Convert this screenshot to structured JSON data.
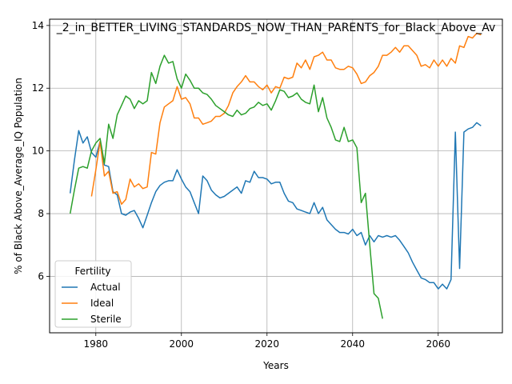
{
  "chart_data": {
    "type": "line",
    "title": "_2_in_BETTER_LIVING_STANDARDS_NOW_THAN_PARENTS_for_Black_Above_Av",
    "xlabel": "Years",
    "ylabel": "% of Black Above_Average_IQ Population",
    "xlim": [
      1969.2,
      1974.8,
      2075.0
    ],
    "xrange": [
      1969.2,
      2075.0
    ],
    "yrange": [
      4.2,
      14.2
    ],
    "xticks": [
      1980,
      2000,
      2020,
      2040,
      2060
    ],
    "yticks": [
      6,
      8,
      10,
      12,
      14
    ],
    "grid": true,
    "legend": {
      "title": "Fertility",
      "placement": "lower-left"
    },
    "series": [
      {
        "name": "Actual",
        "color": "#1f77b4",
        "points": [
          [
            1974,
            8.65
          ],
          [
            1975,
            9.7
          ],
          [
            1976,
            10.65
          ],
          [
            1977,
            10.25
          ],
          [
            1978,
            10.45
          ],
          [
            1979,
            9.95
          ],
          [
            1980,
            9.8
          ],
          [
            1981,
            10.3
          ],
          [
            1982,
            9.55
          ],
          [
            1983,
            9.5
          ],
          [
            1984,
            8.7
          ],
          [
            1985,
            8.6
          ],
          [
            1986,
            8.0
          ],
          [
            1987,
            7.95
          ],
          [
            1988,
            8.05
          ],
          [
            1989,
            8.1
          ],
          [
            1990,
            7.85
          ],
          [
            1991,
            7.55
          ],
          [
            1992,
            7.95
          ],
          [
            1993,
            8.35
          ],
          [
            1994,
            8.7
          ],
          [
            1995,
            8.9
          ],
          [
            1996,
            9.0
          ],
          [
            1997,
            9.05
          ],
          [
            1998,
            9.05
          ],
          [
            1999,
            9.4
          ],
          [
            2000,
            9.1
          ],
          [
            2001,
            8.85
          ],
          [
            2002,
            8.7
          ],
          [
            2003,
            8.35
          ],
          [
            2004,
            8.0
          ],
          [
            2005,
            9.2
          ],
          [
            2006,
            9.05
          ],
          [
            2007,
            8.75
          ],
          [
            2008,
            8.6
          ],
          [
            2009,
            8.5
          ],
          [
            2010,
            8.55
          ],
          [
            2011,
            8.65
          ],
          [
            2012,
            8.75
          ],
          [
            2013,
            8.85
          ],
          [
            2014,
            8.65
          ],
          [
            2015,
            9.05
          ],
          [
            2016,
            9.0
          ],
          [
            2017,
            9.35
          ],
          [
            2018,
            9.15
          ],
          [
            2019,
            9.15
          ],
          [
            2020,
            9.1
          ],
          [
            2021,
            8.95
          ],
          [
            2022,
            9.0
          ],
          [
            2023,
            9.0
          ],
          [
            2024,
            8.65
          ],
          [
            2025,
            8.4
          ],
          [
            2026,
            8.35
          ],
          [
            2027,
            8.15
          ],
          [
            2028,
            8.1
          ],
          [
            2029,
            8.05
          ],
          [
            2030,
            8.0
          ],
          [
            2031,
            8.35
          ],
          [
            2032,
            8.0
          ],
          [
            2033,
            8.2
          ],
          [
            2034,
            7.8
          ],
          [
            2035,
            7.65
          ],
          [
            2036,
            7.5
          ],
          [
            2037,
            7.4
          ],
          [
            2038,
            7.4
          ],
          [
            2039,
            7.35
          ],
          [
            2040,
            7.5
          ],
          [
            2041,
            7.3
          ],
          [
            2042,
            7.4
          ],
          [
            2043,
            7.0
          ],
          [
            2044,
            7.3
          ],
          [
            2045,
            7.1
          ],
          [
            2046,
            7.3
          ],
          [
            2047,
            7.25
          ],
          [
            2048,
            7.3
          ],
          [
            2049,
            7.25
          ],
          [
            2050,
            7.3
          ],
          [
            2051,
            7.15
          ],
          [
            2052,
            6.95
          ],
          [
            2053,
            6.75
          ],
          [
            2054,
            6.45
          ],
          [
            2055,
            6.2
          ],
          [
            2056,
            5.95
          ],
          [
            2057,
            5.9
          ],
          [
            2058,
            5.8
          ],
          [
            2059,
            5.8
          ],
          [
            2060,
            5.6
          ],
          [
            2061,
            5.75
          ],
          [
            2062,
            5.6
          ],
          [
            2063,
            5.9
          ],
          [
            2064,
            10.6
          ],
          [
            2065,
            6.25
          ],
          [
            2066,
            10.6
          ],
          [
            2067,
            10.7
          ],
          [
            2068,
            10.75
          ],
          [
            2069,
            10.9
          ],
          [
            2070,
            10.8
          ]
        ]
      },
      {
        "name": "Ideal",
        "color": "#ff7f0e",
        "points": [
          [
            1979,
            8.55
          ],
          [
            1980,
            9.4
          ],
          [
            1981,
            10.3
          ],
          [
            1982,
            9.2
          ],
          [
            1983,
            9.35
          ],
          [
            1984,
            8.65
          ],
          [
            1985,
            8.7
          ],
          [
            1986,
            8.3
          ],
          [
            1987,
            8.45
          ],
          [
            1988,
            9.1
          ],
          [
            1989,
            8.85
          ],
          [
            1990,
            8.95
          ],
          [
            1991,
            8.8
          ],
          [
            1992,
            8.85
          ],
          [
            1993,
            9.95
          ],
          [
            1994,
            9.9
          ],
          [
            1995,
            10.9
          ],
          [
            1996,
            11.4
          ],
          [
            1997,
            11.5
          ],
          [
            1998,
            11.6
          ],
          [
            1999,
            12.05
          ],
          [
            2000,
            11.65
          ],
          [
            2001,
            11.7
          ],
          [
            2002,
            11.5
          ],
          [
            2003,
            11.05
          ],
          [
            2004,
            11.05
          ],
          [
            2005,
            10.85
          ],
          [
            2006,
            10.9
          ],
          [
            2007,
            10.95
          ],
          [
            2008,
            11.1
          ],
          [
            2009,
            11.1
          ],
          [
            2010,
            11.2
          ],
          [
            2011,
            11.45
          ],
          [
            2012,
            11.85
          ],
          [
            2013,
            12.05
          ],
          [
            2014,
            12.2
          ],
          [
            2015,
            12.4
          ],
          [
            2016,
            12.2
          ],
          [
            2017,
            12.2
          ],
          [
            2018,
            12.05
          ],
          [
            2019,
            11.95
          ],
          [
            2020,
            12.1
          ],
          [
            2021,
            11.85
          ],
          [
            2022,
            12.05
          ],
          [
            2023,
            12.0
          ],
          [
            2024,
            12.35
          ],
          [
            2025,
            12.3
          ],
          [
            2026,
            12.35
          ],
          [
            2027,
            12.8
          ],
          [
            2028,
            12.65
          ],
          [
            2029,
            12.9
          ],
          [
            2030,
            12.6
          ],
          [
            2031,
            13.0
          ],
          [
            2032,
            13.05
          ],
          [
            2033,
            13.15
          ],
          [
            2034,
            12.9
          ],
          [
            2035,
            12.9
          ],
          [
            2036,
            12.65
          ],
          [
            2037,
            12.6
          ],
          [
            2038,
            12.6
          ],
          [
            2039,
            12.7
          ],
          [
            2040,
            12.65
          ],
          [
            2041,
            12.45
          ],
          [
            2042,
            12.15
          ],
          [
            2043,
            12.2
          ],
          [
            2044,
            12.4
          ],
          [
            2045,
            12.5
          ],
          [
            2046,
            12.7
          ],
          [
            2047,
            13.05
          ],
          [
            2048,
            13.05
          ],
          [
            2049,
            13.15
          ],
          [
            2050,
            13.3
          ],
          [
            2051,
            13.15
          ],
          [
            2052,
            13.35
          ],
          [
            2053,
            13.35
          ],
          [
            2054,
            13.2
          ],
          [
            2055,
            13.05
          ],
          [
            2056,
            12.7
          ],
          [
            2057,
            12.75
          ],
          [
            2058,
            12.65
          ],
          [
            2059,
            12.9
          ],
          [
            2060,
            12.7
          ],
          [
            2061,
            12.9
          ],
          [
            2062,
            12.7
          ],
          [
            2063,
            12.95
          ],
          [
            2064,
            12.8
          ],
          [
            2065,
            13.35
          ],
          [
            2066,
            13.3
          ],
          [
            2067,
            13.65
          ],
          [
            2068,
            13.6
          ],
          [
            2069,
            13.75
          ],
          [
            2070,
            13.7
          ]
        ]
      },
      {
        "name": "Sterile",
        "color": "#2ca02c",
        "points": [
          [
            1974,
            8.0
          ],
          [
            1975,
            8.75
          ],
          [
            1976,
            9.45
          ],
          [
            1977,
            9.5
          ],
          [
            1978,
            9.45
          ],
          [
            1979,
            10.0
          ],
          [
            1980,
            10.25
          ],
          [
            1981,
            10.4
          ],
          [
            1982,
            9.6
          ],
          [
            1983,
            10.85
          ],
          [
            1984,
            10.4
          ],
          [
            1985,
            11.15
          ],
          [
            1986,
            11.45
          ],
          [
            1987,
            11.75
          ],
          [
            1988,
            11.65
          ],
          [
            1989,
            11.35
          ],
          [
            1990,
            11.6
          ],
          [
            1991,
            11.5
          ],
          [
            1992,
            11.6
          ],
          [
            1993,
            12.5
          ],
          [
            1994,
            12.15
          ],
          [
            1995,
            12.7
          ],
          [
            1996,
            13.05
          ],
          [
            1997,
            12.8
          ],
          [
            1998,
            12.85
          ],
          [
            1999,
            12.3
          ],
          [
            2000,
            12.0
          ],
          [
            2001,
            12.45
          ],
          [
            2002,
            12.25
          ],
          [
            2003,
            12.0
          ],
          [
            2004,
            12.0
          ],
          [
            2005,
            11.85
          ],
          [
            2006,
            11.8
          ],
          [
            2007,
            11.65
          ],
          [
            2008,
            11.45
          ],
          [
            2009,
            11.35
          ],
          [
            2010,
            11.25
          ],
          [
            2011,
            11.15
          ],
          [
            2012,
            11.1
          ],
          [
            2013,
            11.3
          ],
          [
            2014,
            11.15
          ],
          [
            2015,
            11.2
          ],
          [
            2016,
            11.35
          ],
          [
            2017,
            11.4
          ],
          [
            2018,
            11.55
          ],
          [
            2019,
            11.45
          ],
          [
            2020,
            11.5
          ],
          [
            2021,
            11.3
          ],
          [
            2022,
            11.6
          ],
          [
            2023,
            11.95
          ],
          [
            2024,
            11.9
          ],
          [
            2025,
            11.7
          ],
          [
            2026,
            11.75
          ],
          [
            2027,
            11.85
          ],
          [
            2028,
            11.65
          ],
          [
            2029,
            11.55
          ],
          [
            2030,
            11.5
          ],
          [
            2031,
            12.1
          ],
          [
            2032,
            11.25
          ],
          [
            2033,
            11.7
          ],
          [
            2034,
            11.05
          ],
          [
            2035,
            10.75
          ],
          [
            2036,
            10.35
          ],
          [
            2037,
            10.3
          ],
          [
            2038,
            10.75
          ],
          [
            2039,
            10.3
          ],
          [
            2040,
            10.35
          ],
          [
            2041,
            10.1
          ],
          [
            2042,
            8.35
          ],
          [
            2043,
            8.65
          ],
          [
            2044,
            7.0
          ],
          [
            2045,
            5.45
          ],
          [
            2046,
            5.3
          ],
          [
            2047,
            4.65
          ]
        ]
      }
    ]
  }
}
